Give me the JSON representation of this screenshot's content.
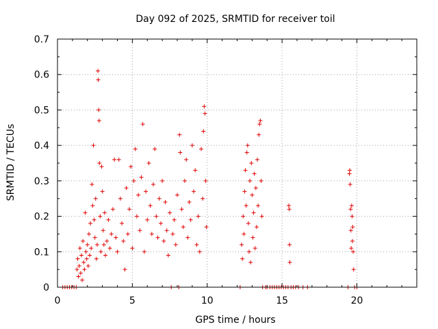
{
  "chart_data": {
    "type": "scatter",
    "title": "Day 092 of 2025, SRMTID for receiver toil",
    "xlabel": "GPS time / hours",
    "ylabel": "SRMTID / TECUs",
    "xlim": [
      0,
      24
    ],
    "ylim": [
      0,
      0.7
    ],
    "xticks": [
      0,
      5,
      10,
      15,
      20
    ],
    "yticks": [
      0,
      0.1,
      0.2,
      0.3,
      0.4,
      0.5,
      0.6,
      0.7
    ],
    "xtick_labels": [
      "0",
      "5",
      "10",
      "15",
      "20"
    ],
    "ytick_labels": [
      "0",
      "0.1",
      "0.2",
      "0.3",
      "0.4",
      "0.5",
      "0.6",
      "0.7"
    ],
    "grid": true,
    "marker": "+",
    "color": "#e00000",
    "series": [
      {
        "name": "SRMTID",
        "points": [
          [
            0.35,
            0.0
          ],
          [
            0.5,
            0.0
          ],
          [
            0.65,
            0.0
          ],
          [
            0.8,
            0.0
          ],
          [
            0.95,
            0.0
          ],
          [
            1.1,
            0.0
          ],
          [
            1.25,
            0.0
          ],
          [
            1.3,
            0.05
          ],
          [
            1.35,
            0.08
          ],
          [
            1.4,
            0.03
          ],
          [
            1.45,
            0.06
          ],
          [
            1.5,
            0.11
          ],
          [
            1.55,
            0.04
          ],
          [
            1.6,
            0.09
          ],
          [
            1.65,
            0.02
          ],
          [
            1.7,
            0.13
          ],
          [
            1.75,
            0.07
          ],
          [
            1.8,
            0.05
          ],
          [
            1.85,
            0.21
          ],
          [
            1.9,
            0.1
          ],
          [
            1.95,
            0.08
          ],
          [
            2.0,
            0.12
          ],
          [
            2.05,
            0.06
          ],
          [
            2.1,
            0.15
          ],
          [
            2.15,
            0.09
          ],
          [
            2.2,
            0.18
          ],
          [
            2.25,
            0.11
          ],
          [
            2.3,
            0.29
          ],
          [
            2.35,
            0.23
          ],
          [
            2.4,
            0.4
          ],
          [
            2.45,
            0.19
          ],
          [
            2.5,
            0.14
          ],
          [
            2.55,
            0.25
          ],
          [
            2.6,
            0.08
          ],
          [
            2.65,
            0.12
          ],
          [
            2.7,
            0.61
          ],
          [
            2.72,
            0.585
          ],
          [
            2.75,
            0.5
          ],
          [
            2.78,
            0.47
          ],
          [
            2.8,
            0.35
          ],
          [
            2.85,
            0.2
          ],
          [
            2.9,
            0.1
          ],
          [
            2.95,
            0.34
          ],
          [
            3.0,
            0.27
          ],
          [
            3.05,
            0.16
          ],
          [
            3.1,
            0.12
          ],
          [
            3.15,
            0.21
          ],
          [
            3.2,
            0.09
          ],
          [
            3.3,
            0.13
          ],
          [
            3.4,
            0.19
          ],
          [
            3.5,
            0.11
          ],
          [
            3.6,
            0.15
          ],
          [
            3.7,
            0.22
          ],
          [
            3.8,
            0.36
          ],
          [
            3.9,
            0.14
          ],
          [
            4.0,
            0.1
          ],
          [
            4.1,
            0.36
          ],
          [
            4.2,
            0.25
          ],
          [
            4.3,
            0.18
          ],
          [
            4.4,
            0.13
          ],
          [
            4.5,
            0.05
          ],
          [
            4.6,
            0.28
          ],
          [
            4.7,
            0.15
          ],
          [
            4.8,
            0.22
          ],
          [
            4.9,
            0.34
          ],
          [
            5.0,
            0.11
          ],
          [
            5.1,
            0.3
          ],
          [
            5.2,
            0.39
          ],
          [
            5.3,
            0.2
          ],
          [
            5.4,
            0.26
          ],
          [
            5.5,
            0.16
          ],
          [
            5.6,
            0.31
          ],
          [
            5.7,
            0.46
          ],
          [
            5.8,
            0.1
          ],
          [
            5.9,
            0.27
          ],
          [
            6.0,
            0.19
          ],
          [
            6.1,
            0.35
          ],
          [
            6.2,
            0.23
          ],
          [
            6.3,
            0.15
          ],
          [
            6.4,
            0.29
          ],
          [
            6.5,
            0.39
          ],
          [
            6.6,
            0.2
          ],
          [
            6.7,
            0.14
          ],
          [
            6.8,
            0.25
          ],
          [
            6.9,
            0.18
          ],
          [
            7.0,
            0.3
          ],
          [
            7.1,
            0.13
          ],
          [
            7.2,
            0.24
          ],
          [
            7.3,
            0.16
          ],
          [
            7.4,
            0.09
          ],
          [
            7.5,
            0.21
          ],
          [
            7.6,
            0.0
          ],
          [
            7.7,
            0.15
          ],
          [
            7.8,
            0.19
          ],
          [
            7.9,
            0.12
          ],
          [
            8.0,
            0.26
          ],
          [
            8.1,
            0.0
          ],
          [
            8.15,
            0.43
          ],
          [
            8.2,
            0.38
          ],
          [
            8.3,
            0.22
          ],
          [
            8.4,
            0.17
          ],
          [
            8.5,
            0.3
          ],
          [
            8.6,
            0.36
          ],
          [
            8.7,
            0.14
          ],
          [
            8.8,
            0.24
          ],
          [
            8.9,
            0.19
          ],
          [
            9.0,
            0.4
          ],
          [
            9.1,
            0.27
          ],
          [
            9.2,
            0.33
          ],
          [
            9.3,
            0.12
          ],
          [
            9.4,
            0.2
          ],
          [
            9.5,
            0.1
          ],
          [
            9.6,
            0.39
          ],
          [
            9.7,
            0.25
          ],
          [
            9.75,
            0.44
          ],
          [
            9.8,
            0.51
          ],
          [
            9.85,
            0.49
          ],
          [
            9.9,
            0.3
          ],
          [
            9.95,
            0.17
          ],
          [
            12.2,
            0.0
          ],
          [
            12.3,
            0.12
          ],
          [
            12.35,
            0.08
          ],
          [
            12.4,
            0.2
          ],
          [
            12.45,
            0.15
          ],
          [
            12.5,
            0.27
          ],
          [
            12.55,
            0.33
          ],
          [
            12.6,
            0.23
          ],
          [
            12.65,
            0.38
          ],
          [
            12.7,
            0.4
          ],
          [
            12.75,
            0.18
          ],
          [
            12.8,
            0.1
          ],
          [
            12.85,
            0.3
          ],
          [
            12.9,
            0.07
          ],
          [
            12.95,
            0.35
          ],
          [
            13.0,
            0.26
          ],
          [
            13.05,
            0.14
          ],
          [
            13.1,
            0.21
          ],
          [
            13.15,
            0.32
          ],
          [
            13.2,
            0.11
          ],
          [
            13.25,
            0.28
          ],
          [
            13.3,
            0.17
          ],
          [
            13.35,
            0.36
          ],
          [
            13.4,
            0.23
          ],
          [
            13.45,
            0.43
          ],
          [
            13.5,
            0.46
          ],
          [
            13.55,
            0.47
          ],
          [
            13.6,
            0.3
          ],
          [
            13.65,
            0.2
          ],
          [
            13.7,
            0.0
          ],
          [
            13.9,
            0.0
          ],
          [
            14.0,
            0.0
          ],
          [
            14.2,
            0.0
          ],
          [
            14.35,
            0.0
          ],
          [
            14.5,
            0.0
          ],
          [
            14.65,
            0.0
          ],
          [
            14.8,
            0.0
          ],
          [
            14.95,
            0.0
          ],
          [
            15.1,
            0.0
          ],
          [
            15.25,
            0.0
          ],
          [
            15.4,
            0.0
          ],
          [
            15.45,
            0.23
          ],
          [
            15.48,
            0.22
          ],
          [
            15.5,
            0.12
          ],
          [
            15.52,
            0.07
          ],
          [
            15.6,
            0.0
          ],
          [
            15.75,
            0.0
          ],
          [
            15.9,
            0.0
          ],
          [
            16.1,
            0.0
          ],
          [
            16.4,
            0.0
          ],
          [
            16.7,
            0.0
          ],
          [
            19.4,
            0.0
          ],
          [
            19.5,
            0.32
          ],
          [
            19.52,
            0.33
          ],
          [
            19.55,
            0.29
          ],
          [
            19.58,
            0.22
          ],
          [
            19.6,
            0.16
          ],
          [
            19.62,
            0.11
          ],
          [
            19.65,
            0.23
          ],
          [
            19.68,
            0.2
          ],
          [
            19.7,
            0.13
          ],
          [
            19.72,
            0.17
          ],
          [
            19.75,
            0.1
          ],
          [
            19.78,
            0.05
          ],
          [
            19.85,
            0.0
          ],
          [
            20.0,
            0.0
          ]
        ]
      }
    ]
  }
}
